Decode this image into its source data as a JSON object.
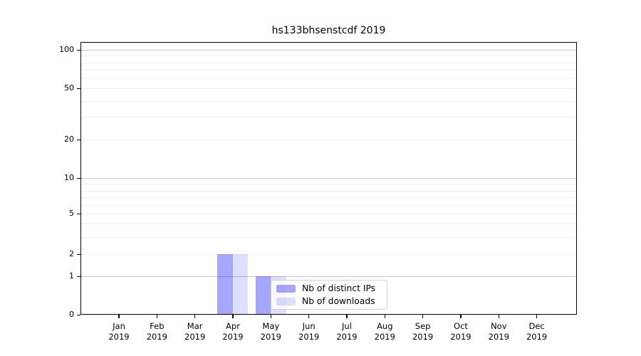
{
  "title": "hs133bhsenstcdf 2019",
  "chart_data": {
    "type": "bar",
    "title": "hs133bhsenstcdf 2019",
    "categories": [
      "Jan\n2019",
      "Feb\n2019",
      "Mar\n2019",
      "Apr\n2019",
      "May\n2019",
      "Jun\n2019",
      "Jul\n2019",
      "Aug\n2019",
      "Sep\n2019",
      "Oct\n2019",
      "Nov\n2019",
      "Dec\n2019"
    ],
    "series": [
      {
        "name": "Nb of distinct IPs",
        "base_color": "#0000ff",
        "alpha": 0.35,
        "rendered_color": "#a6a6f7",
        "values": [
          0,
          0,
          0,
          2,
          1,
          0,
          0,
          0,
          0,
          0,
          0,
          0
        ]
      },
      {
        "name": "Nb of downloads",
        "base_color": "#0000ff",
        "alpha": 0.13,
        "rendered_color": "#dcdcfa",
        "values": [
          0,
          0,
          0,
          2,
          1,
          0,
          0,
          0,
          0,
          0,
          0,
          0
        ]
      }
    ],
    "xlabel": "",
    "ylabel": "",
    "yscale": "symlog",
    "ylim": [
      0,
      115
    ],
    "ytick_labels": [
      "0",
      "1",
      "2",
      "5",
      "10",
      "20",
      "50",
      "100"
    ],
    "ytick_values": [
      0,
      1,
      2,
      5,
      10,
      20,
      50,
      100
    ],
    "grid": "both",
    "major_grid_values": [
      1,
      10,
      100
    ],
    "minor_grid_values": [
      2,
      3,
      4,
      5,
      6,
      7,
      8,
      9,
      20,
      30,
      40,
      50,
      60,
      70,
      80,
      90
    ],
    "major_grid_color": "#c8c8c8",
    "minor_grid_color": "#ededed",
    "legend_position": "inside lower-center",
    "legend_items": [
      "Nb of distinct IPs",
      "Nb of downloads"
    ]
  }
}
